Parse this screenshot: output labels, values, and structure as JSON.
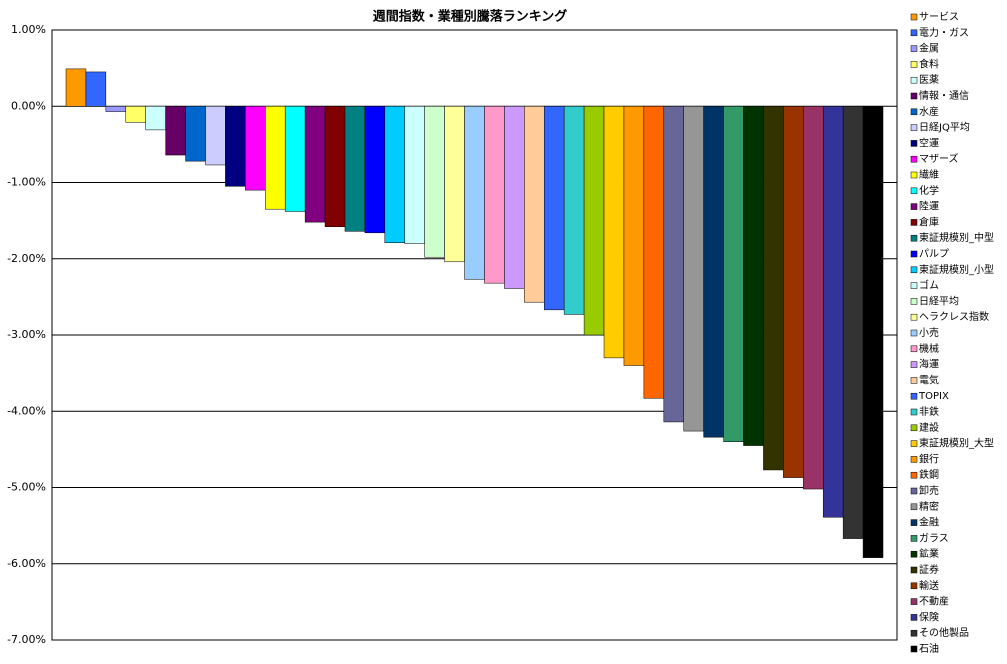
{
  "chart_data": {
    "type": "bar",
    "title": "週間指数・業種別騰落ランキング",
    "categories": [
      "サービス",
      "電力・ガス",
      "金属",
      "食料",
      "医薬",
      "情報・通信",
      "水産",
      "日経JQ平均",
      "空運",
      "マザーズ",
      "繊維",
      "化学",
      "陸運",
      "倉庫",
      "東証規模別_中型",
      "パルプ",
      "東証規模別_小型",
      "ゴム",
      "日経平均",
      "ヘラクレス指数",
      "小売",
      "機械",
      "海運",
      "電気",
      "TOPIX",
      "非鉄",
      "建設",
      "東証規模別_大型",
      "銀行",
      "鉄鋼",
      "卸売",
      "精密",
      "金融",
      "ガラス",
      "鉱業",
      "証券",
      "輸送",
      "不動産",
      "保険",
      "その他製品",
      "石油"
    ],
    "values": [
      0.49,
      0.45,
      -0.07,
      -0.21,
      -0.31,
      -0.64,
      -0.72,
      -0.77,
      -1.05,
      -1.1,
      -1.35,
      -1.38,
      -1.52,
      -1.58,
      -1.64,
      -1.66,
      -1.79,
      -1.8,
      -1.98,
      -2.04,
      -2.27,
      -2.32,
      -2.39,
      -2.57,
      -2.67,
      -2.73,
      -3.0,
      -3.3,
      -3.4,
      -3.83,
      -4.14,
      -4.26,
      -4.34,
      -4.4,
      -4.45,
      -4.77,
      -4.87,
      -5.02,
      -5.39,
      -5.67,
      -5.92
    ],
    "colors": [
      "#FF9900",
      "#3366FF",
      "#9999FF",
      "#FFFF66",
      "#CCFFFF",
      "#660066",
      "#0066CC",
      "#CCCCFF",
      "#000080",
      "#FF00FF",
      "#FFFF00",
      "#00FFFF",
      "#800080",
      "#800000",
      "#008080",
      "#0000FF",
      "#00CCFF",
      "#CCFFFF",
      "#CCFFCC",
      "#FFFF99",
      "#99CCFF",
      "#FF99CC",
      "#CC99FF",
      "#FFCC99",
      "#3366FF",
      "#33CCCC",
      "#99CC00",
      "#FFCC00",
      "#FF9900",
      "#FF6600",
      "#666699",
      "#969696",
      "#003366",
      "#339966",
      "#003300",
      "#333300",
      "#993300",
      "#993366",
      "#333399",
      "#333333",
      "#000000"
    ],
    "ylim": [
      -7,
      1
    ],
    "yticks": [
      {
        "value": 1,
        "label": "1.00%"
      },
      {
        "value": 0,
        "label": "0.00%"
      },
      {
        "value": -1,
        "label": "-1.00%"
      },
      {
        "value": -2,
        "label": "-2.00%"
      },
      {
        "value": -3,
        "label": "-3.00%"
      },
      {
        "value": -4,
        "label": "-4.00%"
      },
      {
        "value": -5,
        "label": "-5.00%"
      },
      {
        "value": -6,
        "label": "-6.00%"
      },
      {
        "value": -7,
        "label": "-7.00%"
      }
    ],
    "grid": true
  }
}
